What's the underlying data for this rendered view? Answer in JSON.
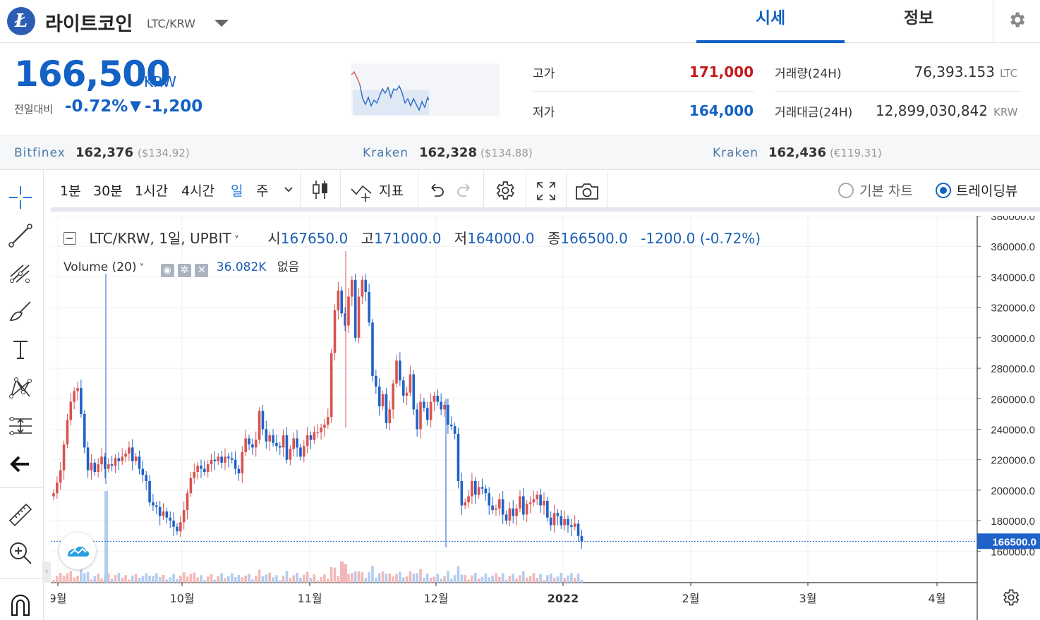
{
  "header": {
    "coin_logo_glyph": "Ł",
    "coin_name": "라이트코인",
    "pair": "LTC/KRW",
    "tabs": [
      "시세",
      "정보"
    ]
  },
  "price": {
    "current": "166,500",
    "unit": "KRW",
    "change_label": "전일대비",
    "change_pct": "-0.72%",
    "change_arrow": "▼",
    "change_abs": "-1,200"
  },
  "stats": {
    "high_label": "고가",
    "high_value": "171,000",
    "low_label": "저가",
    "low_value": "164,000",
    "volume_label": "거래량(24H)",
    "volume_value": "76,393.153",
    "volume_unit": "LTC",
    "amount_label": "거래대금(24H)",
    "amount_value": "12,899,030,842",
    "amount_unit": "KRW"
  },
  "exchanges": [
    {
      "name": "Bitfinex",
      "price": "162,376",
      "sub": "($134.92)"
    },
    {
      "name": "Kraken",
      "price": "162,328",
      "sub": "($134.88)"
    },
    {
      "name": "Kraken",
      "price": "162,436",
      "sub": "(€119.31)"
    }
  ],
  "toolbar": {
    "intervals": [
      "1분",
      "30분",
      "1시간",
      "4시간",
      "일",
      "주"
    ],
    "active_interval": "일",
    "indicators_label": "지표",
    "chart_options": [
      "기본 차트",
      "트레이딩뷰"
    ],
    "selected_option": "트레이딩뷰"
  },
  "legend": {
    "symbol": "LTC/KRW, 1일, UPBIT",
    "open_label": "시",
    "open": "167650.0",
    "high_label": "고",
    "high": "171000.0",
    "low_label": "저",
    "low": "164000.0",
    "close_label": "종",
    "close": "166500.0",
    "change": "-1200.0 (-0.72%)",
    "volume_name": "Volume (20)",
    "volume_value": "36.082K",
    "volume_none": "없음"
  },
  "colors": {
    "accent": "#1261c4",
    "up": "#d9534f",
    "down": "#1f62c8",
    "high_value": "#c61a1a",
    "low_value": "#1261c4"
  },
  "chart_data": {
    "type": "candlestick",
    "x_tick_labels": [
      "9월",
      "10월",
      "11월",
      "12월",
      "2022",
      "2월",
      "3월",
      "4월"
    ],
    "y_tick_labels": [
      "160000.0",
      "180000.0",
      "200000.0",
      "220000.0",
      "240000.0",
      "260000.0",
      "280000.0",
      "300000.0",
      "320000.0",
      "340000.0",
      "360000.0",
      "380000.0"
    ],
    "ylim": [
      156000,
      380000
    ],
    "last_price_label": "166500.0",
    "last_price": 166500,
    "grid": true,
    "daily_closes": [
      198000,
      205000,
      213000,
      230000,
      246000,
      258000,
      265000,
      267000,
      250000,
      228000,
      213000,
      218000,
      212000,
      217000,
      222000,
      214000,
      217000,
      216000,
      221000,
      219000,
      222000,
      224000,
      228000,
      219000,
      222000,
      214000,
      210000,
      206000,
      192000,
      190000,
      189000,
      183000,
      186000,
      182000,
      180000,
      176000,
      173000,
      179000,
      187000,
      198000,
      208000,
      212000,
      216000,
      214000,
      212000,
      217000,
      220000,
      219000,
      222000,
      218000,
      222000,
      221000,
      220000,
      214000,
      211000,
      225000,
      234000,
      230000,
      228000,
      233000,
      252000,
      240000,
      232000,
      236000,
      231000,
      229000,
      228000,
      236000,
      220000,
      227000,
      234000,
      228000,
      222000,
      229000,
      236000,
      233000,
      238000,
      238000,
      241000,
      243000,
      248000,
      290000,
      318000,
      331000,
      316000,
      308000,
      327000,
      338000,
      300000,
      327000,
      338000,
      330000,
      310000,
      275000,
      268000,
      255000,
      263000,
      244000,
      253000,
      270000,
      285000,
      272000,
      262000,
      264000,
      276000,
      253000,
      240000,
      258000,
      254000,
      246000,
      258000,
      262000,
      258000,
      253000,
      256000,
      243000,
      242000,
      237000,
      206000,
      190000,
      192000,
      196000,
      206000,
      197000,
      202000,
      201000,
      198000,
      190000,
      187000,
      188000,
      194000,
      184000,
      180000,
      188000,
      183000,
      188000,
      196000,
      184000,
      191000,
      192000,
      194000,
      197000,
      190000,
      193000,
      182000,
      177000,
      185000,
      183000,
      177000,
      181000,
      177000,
      176000,
      178000,
      170000,
      166500
    ]
  }
}
